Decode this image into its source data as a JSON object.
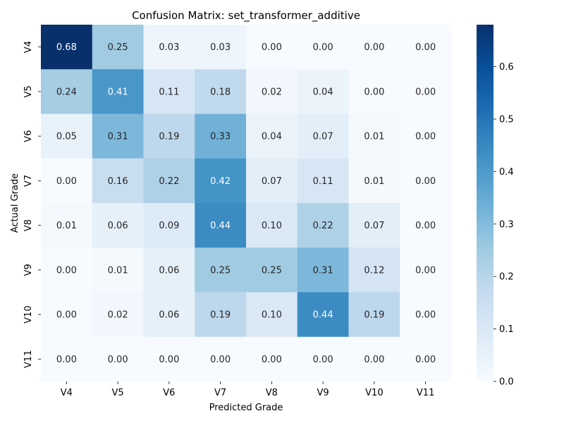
{
  "chart_data": {
    "type": "heatmap",
    "title": "Confusion Matrix: set_transformer_additive",
    "xlabel": "Predicted Grade",
    "ylabel": "Actual Grade",
    "x_categories": [
      "V4",
      "V5",
      "V6",
      "V7",
      "V8",
      "V9",
      "V10",
      "V11"
    ],
    "y_categories": [
      "V4",
      "V5",
      "V6",
      "V7",
      "V8",
      "V9",
      "V10",
      "V11"
    ],
    "values": [
      [
        0.68,
        0.25,
        0.03,
        0.03,
        0.0,
        0.0,
        0.0,
        0.0
      ],
      [
        0.24,
        0.41,
        0.11,
        0.18,
        0.02,
        0.04,
        0.0,
        0.0
      ],
      [
        0.05,
        0.31,
        0.19,
        0.33,
        0.04,
        0.07,
        0.01,
        0.0
      ],
      [
        0.0,
        0.16,
        0.22,
        0.42,
        0.07,
        0.11,
        0.01,
        0.0
      ],
      [
        0.01,
        0.06,
        0.09,
        0.44,
        0.1,
        0.22,
        0.07,
        0.0
      ],
      [
        0.0,
        0.01,
        0.06,
        0.25,
        0.25,
        0.31,
        0.12,
        0.0
      ],
      [
        0.0,
        0.02,
        0.06,
        0.19,
        0.1,
        0.44,
        0.19,
        0.0
      ],
      [
        0.0,
        0.0,
        0.0,
        0.0,
        0.0,
        0.0,
        0.0,
        0.0
      ]
    ],
    "value_format_decimals": 2,
    "color_scale": {
      "name": "Blues",
      "min": 0.0,
      "max": 0.68,
      "ticks": [
        0.0,
        0.1,
        0.2,
        0.3,
        0.4,
        0.5,
        0.6
      ],
      "tick_labels": [
        "0.0",
        "0.1",
        "0.2",
        "0.3",
        "0.4",
        "0.5",
        "0.6"
      ]
    },
    "grid": false
  }
}
